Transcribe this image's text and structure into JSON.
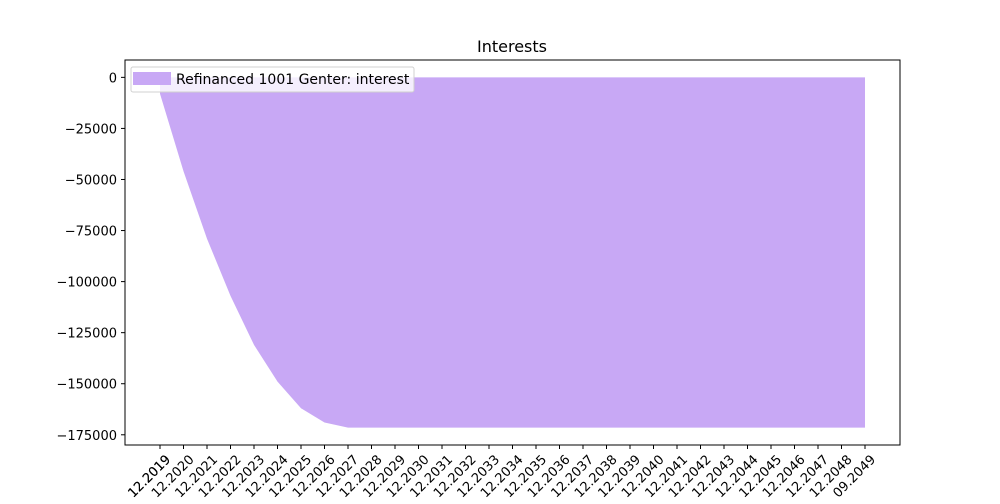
{
  "chart_data": {
    "type": "area",
    "title": "Interests",
    "xlabel": "",
    "ylabel": "",
    "legend": "top-left",
    "grid": false,
    "colors": {
      "fill": "#c8a8f5",
      "axis": "#000000"
    },
    "ylim": [
      -180000,
      8500
    ],
    "yticks": [
      0,
      -25000,
      -50000,
      -75000,
      -100000,
      -125000,
      -150000,
      -175000
    ],
    "ytick_labels": [
      "0",
      "−25000",
      "−50000",
      "−75000",
      "−100000",
      "−125000",
      "−150000",
      "−175000"
    ],
    "xticks": [
      "12.2019",
      "12.2019",
      "12.2020",
      "12.2021",
      "12.2022",
      "12.2023",
      "12.2024",
      "12.2025",
      "12.2026",
      "12.2027",
      "12.2028",
      "12.2029",
      "12.2030",
      "12.2031",
      "12.2032",
      "12.2033",
      "12.2034",
      "12.2035",
      "12.2036",
      "12.2037",
      "12.2038",
      "12.2039",
      "12.2040",
      "12.2041",
      "12.2042",
      "12.2043",
      "12.2044",
      "12.2045",
      "12.2046",
      "12.2047",
      "12.2048",
      "09.2049"
    ],
    "series": [
      {
        "name": "Refinanced 1001 Genter: interest",
        "x": [
          "12.2019",
          "12.2020",
          "12.2021",
          "12.2022",
          "12.2023",
          "12.2024",
          "12.2025",
          "12.2026",
          "12.2027",
          "12.2028",
          "12.2029",
          "12.2030",
          "12.2031",
          "12.2032",
          "12.2033",
          "12.2034",
          "12.2035",
          "12.2036",
          "12.2037",
          "12.2038",
          "12.2039",
          "12.2040",
          "12.2041",
          "12.2042",
          "12.2043",
          "12.2044",
          "12.2045",
          "12.2046",
          "12.2047",
          "12.2048",
          "09.2049"
        ],
        "values": [
          -8000,
          -46000,
          -79000,
          -107000,
          -131000,
          -149000,
          -162000,
          -169000,
          -171500,
          -171500,
          -171500,
          -171500,
          -171500,
          -171500,
          -171500,
          -171500,
          -171500,
          -171500,
          -171500,
          -171500,
          -171500,
          -171500,
          -171500,
          -171500,
          -171500,
          -171500,
          -171500,
          -171500,
          -171500,
          -171500,
          -171500
        ],
        "baseline": 0
      }
    ]
  }
}
